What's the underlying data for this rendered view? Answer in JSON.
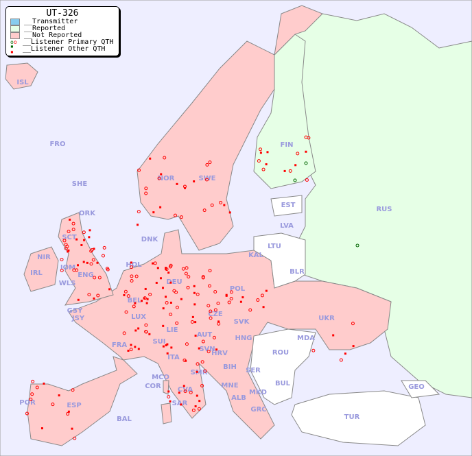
{
  "legend": {
    "title": "UT-326",
    "items": [
      {
        "label": "__Transmitter",
        "color": "#88ccee"
      },
      {
        "label": "__Reported",
        "color": "#e6ffe6"
      },
      {
        "label": "__Not Reported",
        "color": "#ffcccc"
      },
      {
        "label": "__Listener Primary QTH",
        "marker": "circle"
      },
      {
        "label": "__Listener Other QTH",
        "marker": "square"
      }
    ]
  },
  "colors": {
    "sea": "#eeeeff",
    "reported": "#e6ffe6",
    "not_reported": "#ffcccc",
    "neutral": "#ffffff",
    "listener": "#ff0000",
    "primary_green": "#006600",
    "label": "#9999dd"
  },
  "countries": [
    "ISL",
    "FRO",
    "SHE",
    "ORK",
    "NOR",
    "SWE",
    "FIN",
    "RUS",
    "EST",
    "LVA",
    "LTU",
    "KAL",
    "BLR",
    "DNK",
    "HOL",
    "BEL",
    "LUX",
    "DEU",
    "POL",
    "CZE",
    "SVK",
    "AUT",
    "HNG",
    "UKR",
    "MDA",
    "ROU",
    "BUL",
    "SER",
    "BIH",
    "MNE",
    "ALB",
    "MKD",
    "GRC",
    "TUR",
    "GEO",
    "FRA",
    "SUI",
    "LIE",
    "ITA",
    "SVN",
    "HRV",
    "SMR",
    "MCO",
    "COR",
    "CVA",
    "SAR",
    "ESP",
    "POR",
    "BAL",
    "IRL",
    "NIR",
    "GSY",
    "JSY",
    "IOM",
    "WLS",
    "ENG",
    "SCT"
  ]
}
